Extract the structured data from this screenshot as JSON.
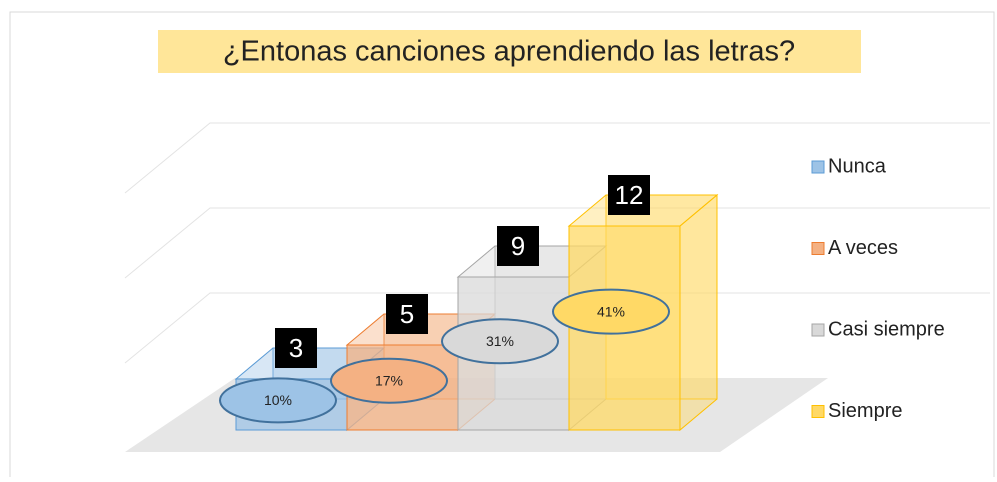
{
  "chart_data": {
    "type": "bar3d",
    "title": "¿Entonas canciones aprendiendo las letras?",
    "categories": [
      "Nunca",
      "A veces",
      "Casi siempre",
      "Siempre"
    ],
    "series": [
      {
        "name": "Nunca",
        "color": "#9dc3e6",
        "values": [
          3,
          null,
          null,
          null
        ]
      },
      {
        "name": "A veces",
        "color": "#f4b183",
        "values": [
          null,
          5,
          null,
          null
        ]
      },
      {
        "name": "Casi siempre",
        "color": "#d9d9d9",
        "values": [
          null,
          null,
          9,
          null
        ]
      },
      {
        "name": "Siempre",
        "color": "#ffd966",
        "values": [
          null,
          null,
          null,
          12
        ]
      }
    ],
    "shares": [
      10,
      17,
      31,
      41
    ],
    "share_labels": [
      "10%",
      "17%",
      "31%",
      "41%"
    ],
    "ylim": [
      0,
      15
    ],
    "yticks": [
      0,
      5,
      10,
      15
    ],
    "grid": true,
    "legend": "right"
  }
}
